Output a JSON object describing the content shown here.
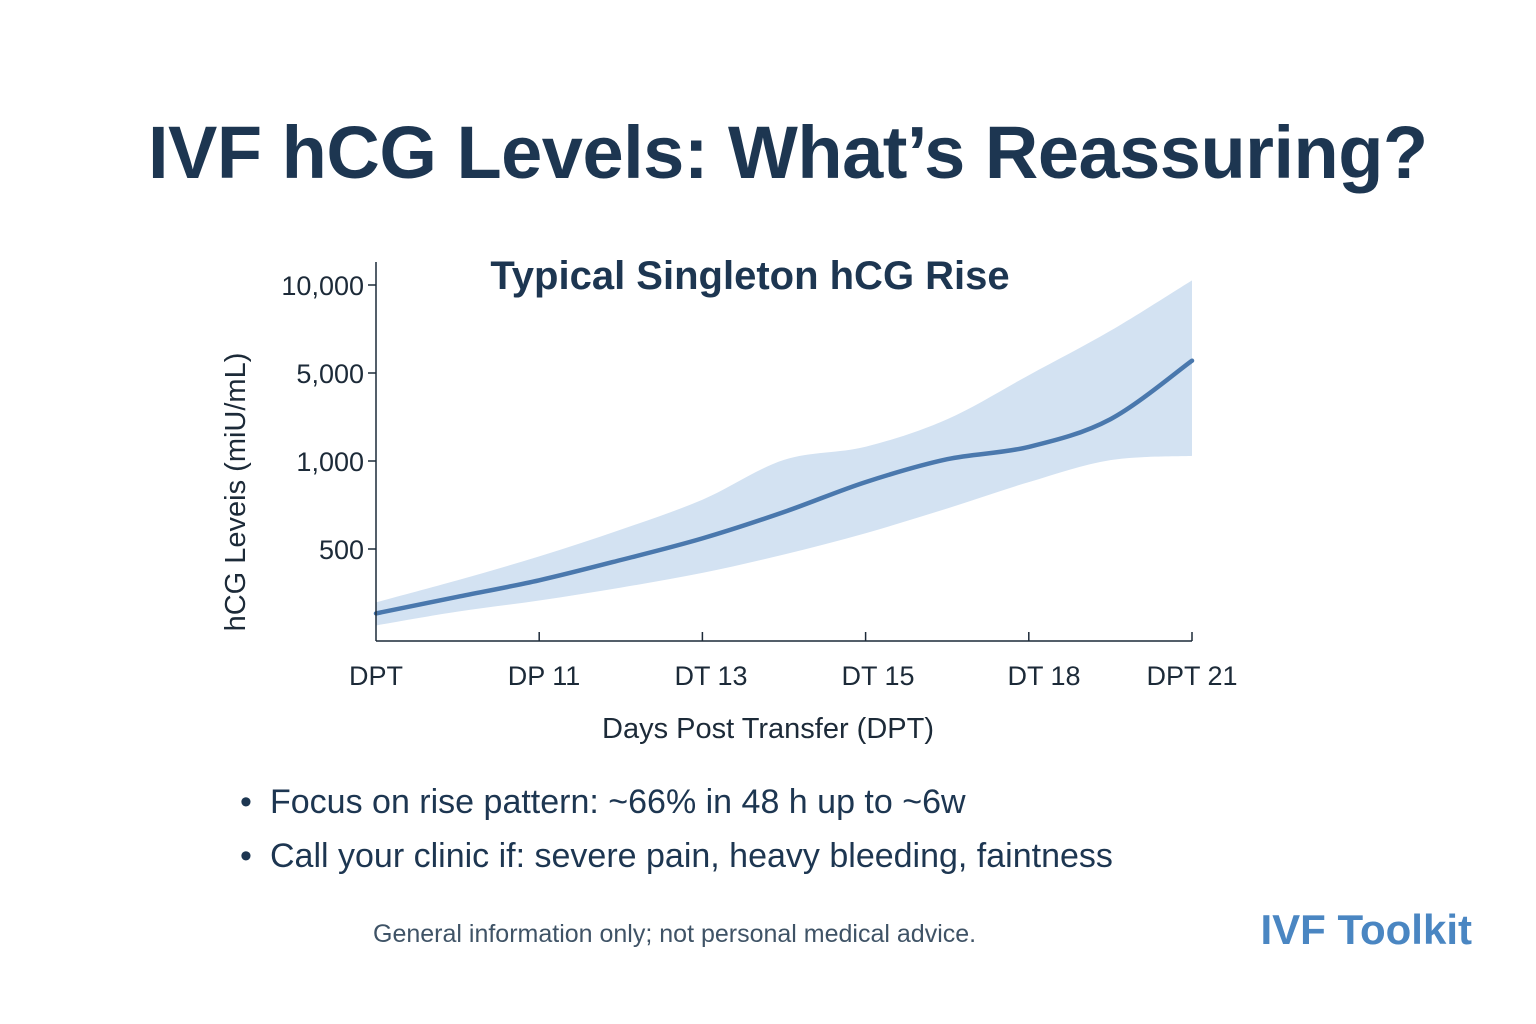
{
  "page": {
    "title": "IVF hCG Levels: What’s Reassuring?",
    "bullets": [
      "Focus on rise pattern: ~66% in 48 h up to ~6w",
      "Call your clinic if: severe pain, heavy bleeding, faintness"
    ],
    "disclaimer": "General information only; not personal medical advice.",
    "brand": "IVF Toolkit"
  },
  "colors": {
    "title": "#1d3651",
    "line": "#4a78ad",
    "band": "#d3e2f2",
    "axis": "#1c2a38",
    "brand": "#4a86c2"
  },
  "chart_data": {
    "type": "area",
    "title": "Typical Singleton hCG Rise",
    "xlabel": "Days Post Transfer (DPT)",
    "ylabel": "hCG Leveis (miU/mL)",
    "x_tick_labels": [
      "DPT",
      "DP 11",
      "DT 13",
      "DT 15",
      "DT 18",
      "DPT 21"
    ],
    "y_tick_labels": [
      "500",
      "1,000",
      "5,000",
      "10,000"
    ],
    "grid": false,
    "series": [
      {
        "role": "median",
        "x": [
          0,
          0.5,
          1,
          1.5,
          2,
          2.5,
          3,
          3.5,
          4,
          4.5,
          5
        ],
        "y": [
          150,
          240,
          330,
          440,
          560,
          710,
          880,
          1080,
          1640,
          2900,
          5700
        ]
      },
      {
        "role": "upper",
        "x": [
          0,
          0.5,
          1,
          1.5,
          2,
          2.5,
          3,
          3.5,
          4,
          4.5,
          5
        ],
        "y": [
          210,
          330,
          460,
          610,
          780,
          1050,
          1650,
          2900,
          4900,
          7400,
          10400
        ]
      },
      {
        "role": "lower",
        "x": [
          0,
          0.5,
          1,
          1.5,
          2,
          2.5,
          3,
          3.5,
          4,
          4.5,
          5
        ],
        "y": [
          85,
          160,
          220,
          290,
          370,
          470,
          590,
          730,
          880,
          1040,
          1230
        ]
      }
    ]
  }
}
